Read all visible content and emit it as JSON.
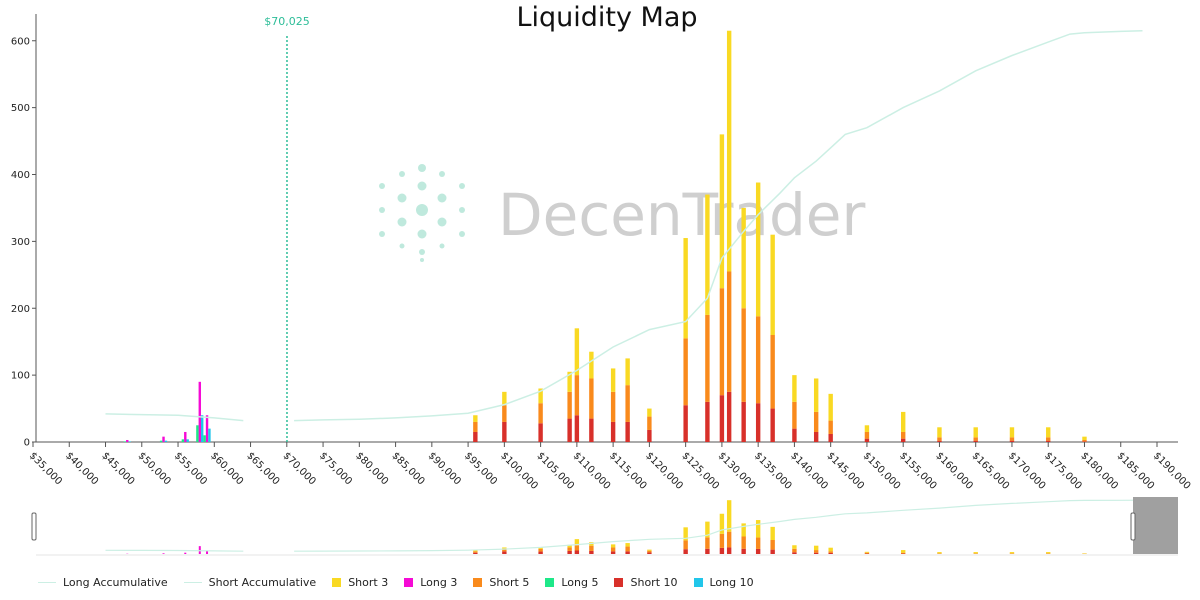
{
  "chart_data": {
    "type": "bar",
    "title": "Liquidity Map",
    "current_price_label": "$70,025",
    "current_price": 70025,
    "watermark": "DecenTrader",
    "x_range": [
      35000,
      190000
    ],
    "y_range": [
      0,
      640
    ],
    "y_ticks": [
      "0",
      "100",
      "200",
      "300",
      "400",
      "500",
      "600"
    ],
    "x_ticks": [
      "$35,000",
      "$40,000",
      "$45,000",
      "$50,000",
      "$55,000",
      "$60,000",
      "$65,000",
      "$70,000",
      "$75,000",
      "$80,000",
      "$85,000",
      "$90,000",
      "$95,000",
      "$100,000",
      "$105,000",
      "$110,000",
      "$115,000",
      "$120,000",
      "$125,000",
      "$130,000",
      "$135,000",
      "$140,000",
      "$145,000",
      "$150,000",
      "$155,000",
      "$160,000",
      "$165,000",
      "$170,000",
      "$175,000",
      "$180,000",
      "$185,000",
      "$190,000"
    ],
    "stack_order": [
      "Short 10",
      "Short 5",
      "Short 3"
    ],
    "series": [
      {
        "name": "Long Accumulative",
        "kind": "line",
        "color": "#ccefe4"
      },
      {
        "name": "Short Accumulative",
        "kind": "line",
        "color": "#ccefe4"
      },
      {
        "name": "Short 3",
        "kind": "bar",
        "color": "#f9d923"
      },
      {
        "name": "Long 3",
        "kind": "bar",
        "color": "#f50ad5"
      },
      {
        "name": "Short 5",
        "kind": "bar",
        "color": "#f98a1c"
      },
      {
        "name": "Long 5",
        "kind": "bar",
        "color": "#1ee889"
      },
      {
        "name": "Short 10",
        "kind": "bar",
        "color": "#d8302a"
      },
      {
        "name": "Long 10",
        "kind": "bar",
        "color": "#21c6ea"
      }
    ],
    "long_accumulative": {
      "x": [
        45000,
        50000,
        55000,
        60000,
        64000
      ],
      "y": [
        42,
        41,
        40,
        36,
        32
      ]
    },
    "short_accumulative": {
      "x": [
        71000,
        75000,
        80000,
        85000,
        90000,
        95000,
        100000,
        105000,
        110000,
        115000,
        120000,
        125000,
        128000,
        130000,
        133000,
        135000,
        138000,
        140000,
        143000,
        145000,
        147000,
        150000,
        155000,
        160000,
        165000,
        170000,
        175000,
        178000,
        180000,
        185000,
        188000
      ],
      "y": [
        32,
        33,
        34,
        36,
        39,
        43,
        56,
        76,
        107,
        142,
        168,
        180,
        215,
        275,
        315,
        340,
        372,
        395,
        420,
        440,
        460,
        470,
        500,
        525,
        555,
        578,
        598,
        610,
        612,
        614,
        615
      ]
    },
    "short_bars": [
      {
        "x": 96000,
        "short10": 15,
        "short5": 15,
        "short3": 10
      },
      {
        "x": 100000,
        "short10": 30,
        "short5": 25,
        "short3": 20
      },
      {
        "x": 105000,
        "short10": 28,
        "short5": 30,
        "short3": 22
      },
      {
        "x": 109000,
        "short10": 35,
        "short5": 40,
        "short3": 30
      },
      {
        "x": 110000,
        "short10": 40,
        "short5": 60,
        "short3": 70
      },
      {
        "x": 112000,
        "short10": 35,
        "short5": 60,
        "short3": 40
      },
      {
        "x": 115000,
        "short10": 30,
        "short5": 45,
        "short3": 35
      },
      {
        "x": 117000,
        "short10": 30,
        "short5": 55,
        "short3": 40
      },
      {
        "x": 120000,
        "short10": 18,
        "short5": 20,
        "short3": 12
      },
      {
        "x": 125000,
        "short10": 55,
        "short5": 100,
        "short3": 150
      },
      {
        "x": 128000,
        "short10": 60,
        "short5": 130,
        "short3": 180
      },
      {
        "x": 130000,
        "short10": 70,
        "short5": 160,
        "short3": 230
      },
      {
        "x": 131000,
        "short10": 75,
        "short5": 180,
        "short3": 360
      },
      {
        "x": 133000,
        "short10": 60,
        "short5": 140,
        "short3": 150
      },
      {
        "x": 135000,
        "short10": 58,
        "short5": 130,
        "short3": 200
      },
      {
        "x": 137000,
        "short10": 50,
        "short5": 110,
        "short3": 150
      },
      {
        "x": 140000,
        "short10": 20,
        "short5": 40,
        "short3": 40
      },
      {
        "x": 143000,
        "short10": 15,
        "short5": 30,
        "short3": 50
      },
      {
        "x": 145000,
        "short10": 12,
        "short5": 20,
        "short3": 40
      },
      {
        "x": 150000,
        "short10": 5,
        "short5": 10,
        "short3": 10
      },
      {
        "x": 155000,
        "short10": 5,
        "short5": 10,
        "short3": 30
      },
      {
        "x": 160000,
        "short10": 2,
        "short5": 5,
        "short3": 15
      },
      {
        "x": 165000,
        "short10": 2,
        "short5": 5,
        "short3": 15
      },
      {
        "x": 170000,
        "short10": 2,
        "short5": 5,
        "short3": 15
      },
      {
        "x": 175000,
        "short10": 2,
        "short5": 5,
        "short3": 15
      },
      {
        "x": 180000,
        "short10": 1,
        "short5": 2,
        "short3": 5
      }
    ],
    "long_bars": [
      {
        "x": 48000,
        "long3": 3,
        "long5": 1,
        "long10": 1
      },
      {
        "x": 53000,
        "long3": 8,
        "long5": 2,
        "long10": 2
      },
      {
        "x": 56000,
        "long3": 15,
        "long5": 4,
        "long10": 4
      },
      {
        "x": 58000,
        "long3": 90,
        "long5": 25,
        "long10": 40
      },
      {
        "x": 59000,
        "long3": 40,
        "long5": 10,
        "long10": 20
      }
    ]
  },
  "legend": [
    "Long Accumulative",
    "Short Accumulative",
    "Short 3",
    "Long 3",
    "Short 5",
    "Long 5",
    "Short 10",
    "Long 10"
  ]
}
